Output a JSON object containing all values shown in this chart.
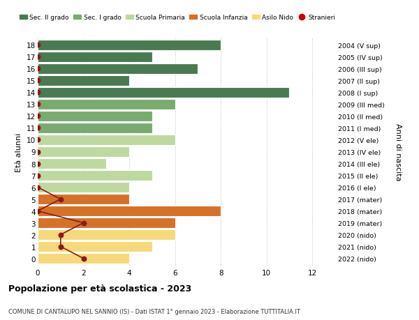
{
  "ages": [
    18,
    17,
    16,
    15,
    14,
    13,
    12,
    11,
    10,
    9,
    8,
    7,
    6,
    5,
    4,
    3,
    2,
    1,
    0
  ],
  "right_labels": [
    "2004 (V sup)",
    "2005 (IV sup)",
    "2006 (III sup)",
    "2007 (II sup)",
    "2008 (I sup)",
    "2009 (III med)",
    "2010 (II med)",
    "2011 (I med)",
    "2012 (V ele)",
    "2013 (IV ele)",
    "2014 (III ele)",
    "2015 (II ele)",
    "2016 (I ele)",
    "2017 (mater)",
    "2018 (mater)",
    "2019 (mater)",
    "2020 (nido)",
    "2021 (nido)",
    "2022 (nido)"
  ],
  "bar_values": [
    8,
    5,
    7,
    4,
    11,
    6,
    5,
    5,
    6,
    4,
    3,
    5,
    4,
    4,
    8,
    6,
    6,
    5,
    4
  ],
  "bar_colors": [
    "#4a7a52",
    "#4a7a52",
    "#4a7a52",
    "#4a7a52",
    "#4a7a52",
    "#7aab6e",
    "#7aab6e",
    "#7aab6e",
    "#bdd9a0",
    "#bdd9a0",
    "#bdd9a0",
    "#bdd9a0",
    "#bdd9a0",
    "#d4722a",
    "#d4722a",
    "#d4722a",
    "#f5d97a",
    "#f5d97a",
    "#f5d97a"
  ],
  "stranieri_values": [
    0,
    0,
    0,
    0,
    0,
    0,
    0,
    0,
    0,
    0,
    0,
    0,
    0,
    1,
    0,
    2,
    1,
    1,
    2
  ],
  "stranieri_color": "#8b1a1a",
  "legend_items": [
    {
      "label": "Sec. II grado",
      "color": "#4a7a52",
      "type": "bar"
    },
    {
      "label": "Sec. I grado",
      "color": "#7aab6e",
      "type": "bar"
    },
    {
      "label": "Scuola Primaria",
      "color": "#bdd9a0",
      "type": "bar"
    },
    {
      "label": "Scuola Infanzia",
      "color": "#d4722a",
      "type": "bar"
    },
    {
      "label": "Asilo Nido",
      "color": "#f5d97a",
      "type": "bar"
    },
    {
      "label": "Stranieri",
      "color": "#cc0000",
      "type": "dot"
    }
  ],
  "ylabel_left": "Età alunni",
  "ylabel_right": "Anni di nascita",
  "xlim": [
    0,
    13
  ],
  "xticks": [
    0,
    2,
    4,
    6,
    8,
    10,
    12
  ],
  "title": "Popolazione per età scolastica - 2023",
  "subtitle": "COMUNE DI CANTALUPO NEL SANNIO (IS) - Dati ISTAT 1° gennaio 2023 - Elaborazione TUTTITALIA.IT",
  "background_color": "#ffffff",
  "grid_color": "#cccccc",
  "bar_height": 0.85
}
